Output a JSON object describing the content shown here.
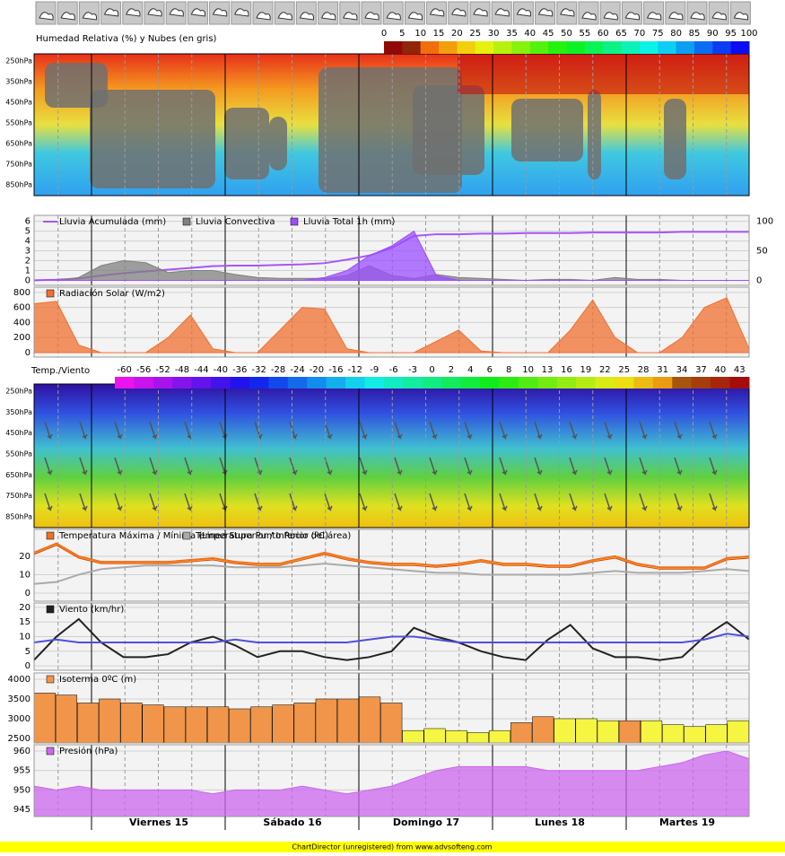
{
  "chart_data": [
    {
      "type": "heatmap",
      "title": "Humedad Relativa (%) y Nubes (en gris)",
      "colorbar_ticks": [
        0,
        5,
        10,
        15,
        20,
        25,
        30,
        35,
        40,
        45,
        50,
        55,
        60,
        65,
        70,
        75,
        80,
        85,
        90,
        95,
        100
      ],
      "levels": [
        "250hPa",
        "350hPa",
        "450hPa",
        "550hPa",
        "650hPa",
        "750hPa",
        "850hPa"
      ]
    },
    {
      "type": "area",
      "ylim": [
        -0.5,
        6.6
      ],
      "yticks": [
        0,
        1,
        2,
        3,
        4,
        5,
        6
      ],
      "y2lim": [
        -8.5,
        110
      ],
      "y2ticks": [
        0,
        50,
        100
      ],
      "series": [
        {
          "name": "Lluvia Acumulada (mm)",
          "color": "#a855f7",
          "axis": "y2",
          "line": true,
          "values": [
            0,
            1,
            3,
            8,
            12,
            15,
            18,
            21,
            24,
            25,
            25,
            26,
            27,
            29,
            35,
            42,
            55,
            75,
            78,
            78,
            79,
            79,
            80,
            80,
            80,
            81,
            81,
            81,
            81,
            82,
            82,
            82,
            82
          ]
        },
        {
          "name": "Lluvia Convectiva",
          "color": "#808080",
          "values": [
            0,
            0,
            0.3,
            1.5,
            2,
            1.8,
            0.8,
            1,
            1,
            0.6,
            0.3,
            0.2,
            0.2,
            0.2,
            0.5,
            1.5,
            0.5,
            0.2,
            0.6,
            0.3,
            0.2,
            0.1,
            0,
            0.1,
            0.1,
            0,
            0.3,
            0.1,
            0.1,
            0,
            0,
            0,
            0
          ]
        },
        {
          "name": "Lluvia Total 1h (mm)",
          "color": "#9b4dff",
          "values": [
            0,
            0,
            0,
            0,
            0,
            0,
            0,
            0,
            0,
            0,
            0,
            0,
            0,
            0.3,
            1,
            2.5,
            3.5,
            5,
            0.5,
            0,
            0,
            0,
            0,
            0,
            0,
            0,
            0,
            0,
            0,
            0,
            0,
            0,
            0
          ]
        }
      ]
    },
    {
      "type": "area",
      "ylim": [
        -60,
        870
      ],
      "yticks": [
        0,
        200,
        400,
        600,
        800
      ],
      "series": [
        {
          "name": "Radiación Solar (W/m2)",
          "color": "#f07030",
          "values": [
            650,
            680,
            100,
            0,
            0,
            0,
            200,
            500,
            50,
            0,
            0,
            300,
            600,
            580,
            50,
            0,
            0,
            0,
            150,
            300,
            20,
            0,
            0,
            0,
            300,
            700,
            200,
            0,
            0,
            200,
            600,
            730,
            50
          ]
        }
      ]
    },
    {
      "type": "heatmap",
      "title": "Temp./Viento",
      "colorbar_ticks": [
        -60,
        -56,
        -52,
        -48,
        -44,
        -40,
        -36,
        -32,
        -28,
        -24,
        -20,
        -16,
        -12,
        -9,
        -6,
        -3,
        0,
        2,
        4,
        6,
        8,
        10,
        13,
        16,
        19,
        22,
        25,
        28,
        31,
        34,
        37,
        40,
        43
      ],
      "levels": [
        "250hPa",
        "350hPa",
        "450hPa",
        "550hPa",
        "650hPa",
        "750hPa",
        "850hPa"
      ]
    },
    {
      "type": "line",
      "ylim": [
        -4.4,
        34.6
      ],
      "yticks": [
        0,
        10,
        20
      ],
      "series": [
        {
          "name": "Temperatura Máxima / Mínima (Linea Superior / Inferior del área)",
          "color": "#f07020",
          "values": [
            22,
            27,
            20,
            17,
            17,
            17,
            17,
            18,
            19,
            17,
            16,
            16,
            19,
            22,
            19,
            17,
            16,
            16,
            15,
            16,
            18,
            16,
            16,
            15,
            15,
            18,
            20,
            16,
            14,
            14,
            14,
            19,
            20
          ],
          "values_low": [
            21,
            26,
            19,
            16,
            16,
            16,
            16,
            17,
            18,
            16,
            15,
            15,
            18,
            21,
            18,
            16,
            15,
            15,
            14,
            15,
            17,
            15,
            15,
            14,
            14,
            17,
            19,
            15,
            13,
            13,
            13,
            18,
            19
          ]
        },
        {
          "name": "Temperatura Punto Rocio (ºC)",
          "color": "#aaaaaa",
          "values": [
            5,
            6,
            10,
            13,
            14,
            15,
            15,
            15,
            15,
            14,
            14,
            14,
            15,
            16,
            15,
            14,
            13,
            12,
            11,
            11,
            10,
            10,
            10,
            10,
            10,
            11,
            12,
            11,
            11,
            11,
            12,
            13,
            12
          ]
        }
      ]
    },
    {
      "type": "line",
      "ylim": [
        -1.5,
        21.5
      ],
      "yticks": [
        0,
        5,
        10,
        15,
        20
      ],
      "series": [
        {
          "name": "Viento (km/hr)",
          "color": "#222222",
          "values": [
            2,
            10,
            16,
            8,
            3,
            3,
            4,
            8,
            10,
            7,
            3,
            5,
            5,
            3,
            2,
            3,
            5,
            13,
            10,
            8,
            5,
            3,
            2,
            9,
            14,
            6,
            3,
            3,
            2,
            3,
            10,
            15,
            9
          ]
        },
        {
          "color": "#5050e0",
          "values": [
            8,
            9,
            8,
            8,
            8,
            8,
            8,
            8,
            8,
            9,
            8,
            8,
            8,
            8,
            8,
            9,
            10,
            10,
            9,
            8,
            8,
            8,
            8,
            8,
            8,
            8,
            8,
            8,
            8,
            8,
            9,
            11,
            10
          ]
        }
      ]
    },
    {
      "type": "bar",
      "ylim": [
        2386,
        4159
      ],
      "yticks": [
        2500,
        3000,
        3500,
        4000
      ],
      "series": [
        {
          "name": "Isoterma 0ºC (m)",
          "color": "#f0954a",
          "values": [
            3650,
            3600,
            3400,
            3500,
            3400,
            3350,
            3300,
            3300,
            3300,
            3250,
            3300,
            3350,
            3400,
            3500,
            3500,
            3550,
            3400,
            2700,
            2750,
            2700,
            2650,
            2700,
            2900,
            3050,
            3000,
            3000,
            2950,
            2950,
            2950,
            2850,
            2800,
            2850,
            2950
          ],
          "colors": [
            "#f0954a",
            "#f0954a",
            "#f0954a",
            "#f0954a",
            "#f0954a",
            "#f0954a",
            "#f0954a",
            "#f0954a",
            "#f0954a",
            "#f0954a",
            "#f0954a",
            "#f0954a",
            "#f0954a",
            "#f0954a",
            "#f0954a",
            "#f0954a",
            "#f0954a",
            "#f5f542",
            "#f5f542",
            "#f5f542",
            "#f5f542",
            "#f5f542",
            "#f0954a",
            "#f0954a",
            "#f5f542",
            "#f5f542",
            "#f5f542",
            "#f0954a",
            "#f5f542",
            "#f5f542",
            "#f5f542",
            "#f5f542",
            "#f5f542"
          ]
        }
      ]
    },
    {
      "type": "area",
      "ylim": [
        943.2,
        961.6
      ],
      "yticks": [
        945,
        950,
        955,
        960
      ],
      "series": [
        {
          "name": "Presión (hPa)",
          "color": "#cc66ee",
          "values": [
            951,
            950,
            951,
            950,
            950,
            950,
            950,
            950,
            949,
            950,
            950,
            950,
            951,
            950,
            949,
            950,
            951,
            953,
            955,
            956,
            956,
            956,
            956,
            955,
            955,
            955,
            955,
            955,
            956,
            957,
            959,
            960,
            958
          ]
        }
      ]
    }
  ],
  "days": [
    "Viernes 15",
    "Sábado 16",
    "Domingo 17",
    "Lunes 18",
    "Martes 19"
  ],
  "footer": "ChartDirector (unregistered) from www.advsofteng.com"
}
